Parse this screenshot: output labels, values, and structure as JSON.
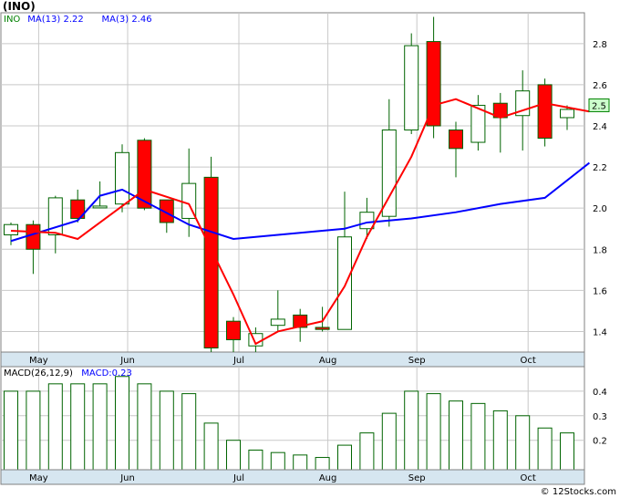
{
  "header": {
    "symbol_label": "(INO)"
  },
  "watermark": "© 12Stocks.com",
  "chart_data": [
    {
      "type": "candlestick",
      "legend": [
        {
          "label": "INO",
          "color": "#008000"
        },
        {
          "label": "MA(13)",
          "value": "2.22",
          "color": "#0000ff"
        },
        {
          "label": "MA(3)",
          "value": "2.46",
          "color": "#0000ff"
        }
      ],
      "last_price_badge": "2.5",
      "y_ticks": [
        "1.4",
        "1.6",
        "1.8",
        "2.0",
        "2.2",
        "2.4",
        "2.6",
        "2.8"
      ],
      "ylim": [
        1.3,
        2.95
      ],
      "x_month_labels": [
        {
          "label": "May",
          "index": 1
        },
        {
          "label": "Jun",
          "index": 5
        },
        {
          "label": "Jul",
          "index": 10
        },
        {
          "label": "Aug",
          "index": 14
        },
        {
          "label": "Sep",
          "index": 18
        },
        {
          "label": "Oct",
          "index": 23
        }
      ],
      "candles": [
        {
          "o": 1.87,
          "h": 1.93,
          "l": 1.82,
          "c": 1.92
        },
        {
          "o": 1.92,
          "h": 1.94,
          "l": 1.68,
          "c": 1.8
        },
        {
          "o": 1.87,
          "h": 2.06,
          "l": 1.78,
          "c": 2.05
        },
        {
          "o": 2.04,
          "h": 2.09,
          "l": 1.93,
          "c": 1.95
        },
        {
          "o": 2.01,
          "h": 2.13,
          "l": 2.0,
          "c": 2.01
        },
        {
          "o": 2.02,
          "h": 2.31,
          "l": 1.98,
          "c": 2.27
        },
        {
          "o": 2.33,
          "h": 2.34,
          "l": 1.99,
          "c": 2.0
        },
        {
          "o": 2.04,
          "h": 2.04,
          "l": 1.88,
          "c": 1.93
        },
        {
          "o": 1.95,
          "h": 2.29,
          "l": 1.86,
          "c": 2.12
        },
        {
          "o": 2.15,
          "h": 2.25,
          "l": 1.3,
          "c": 1.32
        },
        {
          "o": 1.45,
          "h": 1.47,
          "l": 1.3,
          "c": 1.36
        },
        {
          "o": 1.33,
          "h": 1.42,
          "l": 1.3,
          "c": 1.39
        },
        {
          "o": 1.43,
          "h": 1.6,
          "l": 1.4,
          "c": 1.46
        },
        {
          "o": 1.48,
          "h": 1.51,
          "l": 1.35,
          "c": 1.42
        },
        {
          "o": 1.42,
          "h": 1.52,
          "l": 1.4,
          "c": 1.41
        },
        {
          "o": 1.41,
          "h": 2.08,
          "l": 1.41,
          "c": 1.86
        },
        {
          "o": 1.9,
          "h": 2.05,
          "l": 1.85,
          "c": 1.98
        },
        {
          "o": 1.96,
          "h": 2.53,
          "l": 1.91,
          "c": 2.38
        },
        {
          "o": 2.38,
          "h": 2.85,
          "l": 2.36,
          "c": 2.79
        },
        {
          "o": 2.81,
          "h": 2.93,
          "l": 2.34,
          "c": 2.4
        },
        {
          "o": 2.38,
          "h": 2.42,
          "l": 2.15,
          "c": 2.29
        },
        {
          "o": 2.32,
          "h": 2.55,
          "l": 2.28,
          "c": 2.5
        },
        {
          "o": 2.51,
          "h": 2.56,
          "l": 2.27,
          "c": 2.44
        },
        {
          "o": 2.45,
          "h": 2.67,
          "l": 2.28,
          "c": 2.57
        },
        {
          "o": 2.6,
          "h": 2.63,
          "l": 2.3,
          "c": 2.34
        },
        {
          "o": 2.44,
          "h": 2.5,
          "l": 2.38,
          "c": 2.48
        }
      ],
      "series": [
        {
          "name": "MA(13)",
          "color": "#0000ff",
          "points": [
            [
              0,
              1.84
            ],
            [
              3,
              1.94
            ],
            [
              4,
              2.06
            ],
            [
              5,
              2.09
            ],
            [
              8,
              1.92
            ],
            [
              10,
              1.85
            ],
            [
              12,
              1.87
            ],
            [
              13,
              1.88
            ],
            [
              14,
              1.89
            ],
            [
              15,
              1.9
            ],
            [
              16,
              1.93
            ],
            [
              18,
              1.95
            ],
            [
              20,
              1.98
            ],
            [
              22,
              2.02
            ],
            [
              24,
              2.05
            ],
            [
              26,
              2.22
            ]
          ]
        },
        {
          "name": "MA(3)",
          "color": "#ff0000",
          "points": [
            [
              0,
              1.89
            ],
            [
              2,
              1.88
            ],
            [
              3,
              1.85
            ],
            [
              6,
              2.09
            ],
            [
              8,
              2.02
            ],
            [
              10,
              1.58
            ],
            [
              11,
              1.34
            ],
            [
              12,
              1.4
            ],
            [
              14,
              1.45
            ],
            [
              15,
              1.62
            ],
            [
              16,
              1.86
            ],
            [
              18,
              2.25
            ],
            [
              19,
              2.5
            ],
            [
              20,
              2.53
            ],
            [
              22,
              2.44
            ],
            [
              24,
              2.51
            ],
            [
              26,
              2.47
            ]
          ]
        }
      ]
    },
    {
      "type": "bar",
      "legend": [
        {
          "label": "MACD(26,12,9)",
          "color": "#000000"
        },
        {
          "label": "MACD:0.23",
          "color": "#0000ff"
        }
      ],
      "y_ticks": [
        "0.2",
        "0.3",
        "0.4"
      ],
      "ylim": [
        0.08,
        0.5
      ],
      "values": [
        0.4,
        0.4,
        0.43,
        0.43,
        0.43,
        0.46,
        0.43,
        0.4,
        0.39,
        0.27,
        0.2,
        0.16,
        0.15,
        0.14,
        0.13,
        0.18,
        0.23,
        0.31,
        0.4,
        0.39,
        0.36,
        0.35,
        0.32,
        0.3,
        0.25,
        0.23
      ]
    }
  ]
}
